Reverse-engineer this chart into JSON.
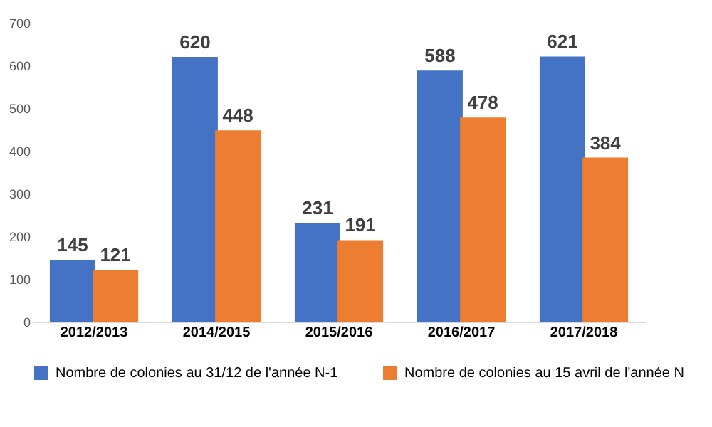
{
  "chart_data": {
    "type": "bar",
    "categories": [
      "2012/2013",
      "2014/2015",
      "2015/2016",
      "2016/2017",
      "2017/2018"
    ],
    "series": [
      {
        "name": "Nombre de colonies au 31/12 de l'année N-1",
        "color": "#4472c4",
        "values": [
          145,
          620,
          231,
          588,
          621
        ]
      },
      {
        "name": "Nombre de colonies au 15 avril de l'année N",
        "color": "#ed7d31",
        "values": [
          121,
          448,
          191,
          478,
          384
        ]
      }
    ],
    "ylim": [
      0,
      700
    ],
    "yticks": [
      0,
      100,
      200,
      300,
      400,
      500,
      600,
      700
    ],
    "grid": false,
    "legend": "bottom",
    "data_labels": true
  }
}
